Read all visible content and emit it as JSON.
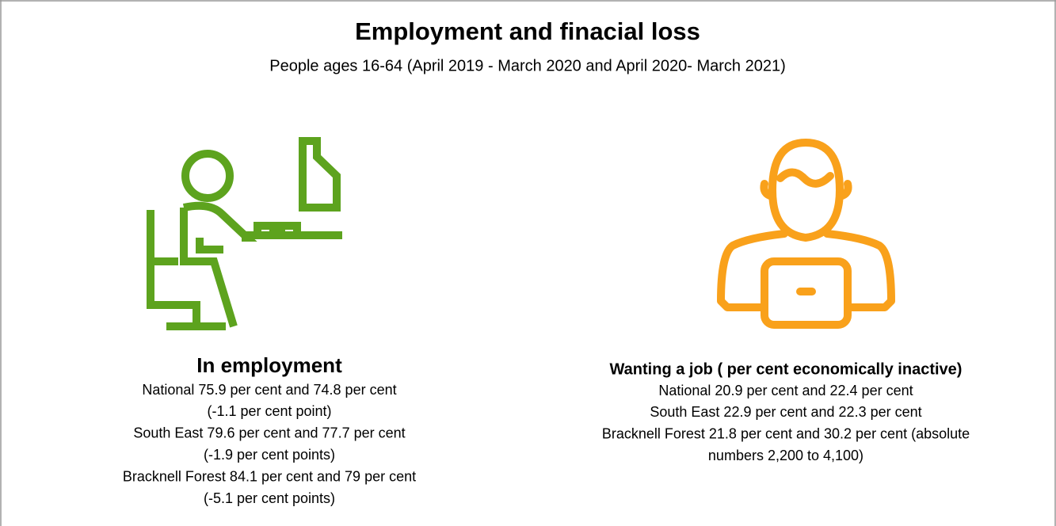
{
  "header": {
    "title": "Employment and finacial loss",
    "subtitle": "People ages 16-64 (April 2019 - March 2020 and April 2020- March 2021)"
  },
  "panels": [
    {
      "heading": "In employment",
      "lines": [
        "National 75.9 per cent and 74.8 per cent",
        "(-1.1 per cent point)",
        "South East 79.6 per cent and 77.7 per cent",
        "(-1.9 per cent points)",
        "Bracknell Forest 84.1 per cent and 79 per cent",
        "(-5.1 per cent points)"
      ]
    },
    {
      "heading": "Wanting a job ( per cent economically inactive)",
      "lines": [
        "National 20.9 per cent and 22.4 per cent",
        "South East 22.9 per cent and 22.3 per cent",
        "Bracknell Forest 21.8 per cent and 30.2 per cent (absolute",
        "numbers 2,200 to 4,100)"
      ]
    }
  ]
}
